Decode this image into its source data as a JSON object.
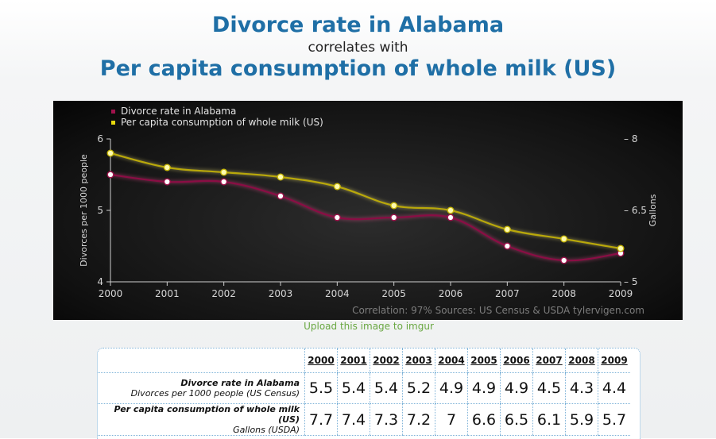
{
  "header": {
    "line1": "Divorce rate in Alabama",
    "line2": "correlates with",
    "line3": "Per capita consumption of whole milk (US)"
  },
  "upload_link": "Upload this image to imgur",
  "chart_data": {
    "type": "line",
    "x": [
      "2000",
      "2001",
      "2002",
      "2003",
      "2004",
      "2005",
      "2006",
      "2007",
      "2008",
      "2009"
    ],
    "series": [
      {
        "name": "Divorce rate in Alabama",
        "axis": "left",
        "color": "#7a0a3a",
        "values": [
          5.5,
          5.4,
          5.4,
          5.2,
          4.9,
          4.9,
          4.9,
          4.5,
          4.3,
          4.4
        ]
      },
      {
        "name": "Per capita consumption of whole milk (US)",
        "axis": "right",
        "color": "#c9b90a",
        "values": [
          7.7,
          7.4,
          7.3,
          7.2,
          7,
          6.6,
          6.5,
          6.1,
          5.9,
          5.7
        ]
      }
    ],
    "ylabel": "Divorces per 1000 people",
    "y2label": "Gallons",
    "ylim": [
      4,
      6
    ],
    "y2lim": [
      5,
      8
    ],
    "yticks": [
      "4",
      "5",
      "6"
    ],
    "y2ticks": [
      "5",
      "6.5",
      "8"
    ],
    "footer": "Correlation: 97%    Sources: US Census & USDA    tylervigen.com",
    "legend_position": "top-left"
  },
  "table": {
    "years": [
      "2000",
      "2001",
      "2002",
      "2003",
      "2004",
      "2005",
      "2006",
      "2007",
      "2008",
      "2009"
    ],
    "rows": [
      {
        "label": "Divorce rate in Alabama",
        "sublabel": "Divorces per 1000 people (US Census)",
        "values": [
          "5.5",
          "5.4",
          "5.4",
          "5.2",
          "4.9",
          "4.9",
          "4.9",
          "4.5",
          "4.3",
          "4.4"
        ]
      },
      {
        "label": "Per capita consumption of whole milk (US)",
        "sublabel": "Gallons (USDA)",
        "values": [
          "7.7",
          "7.4",
          "7.3",
          "7.2",
          "7",
          "6.6",
          "6.5",
          "6.1",
          "5.9",
          "5.7"
        ]
      }
    ]
  }
}
